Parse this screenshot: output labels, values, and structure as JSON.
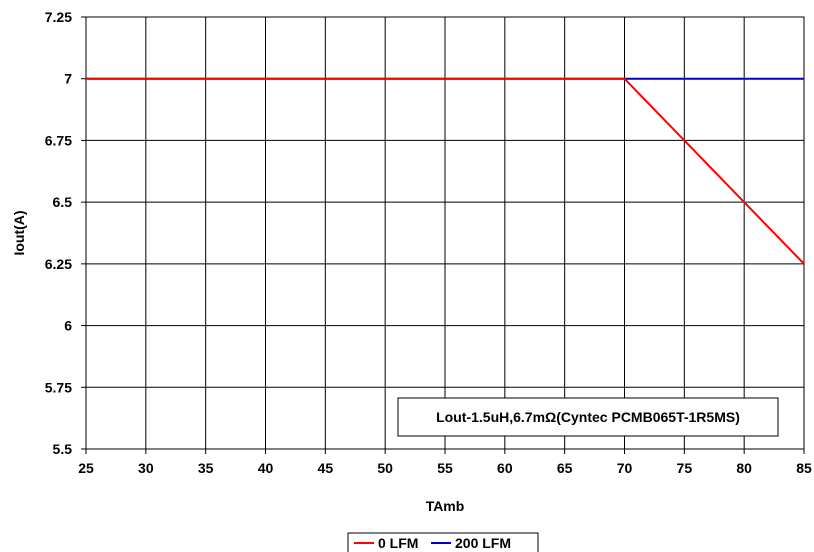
{
  "chart_data": {
    "type": "line",
    "xlabel": "TAmb",
    "ylabel": "Iout(A)",
    "xlim": [
      25,
      85
    ],
    "ylim": [
      5.5,
      7.25
    ],
    "x_ticks": [
      25,
      30,
      35,
      40,
      45,
      50,
      55,
      60,
      65,
      70,
      75,
      80,
      85
    ],
    "x_tick_labels": [
      "25",
      "30",
      "35",
      "40",
      "45",
      "50",
      "55",
      "60",
      "65",
      "70",
      "75",
      "80",
      "85"
    ],
    "y_ticks": [
      5.5,
      5.75,
      6,
      6.25,
      6.5,
      6.75,
      7,
      7.25
    ],
    "y_tick_labels": [
      "5.5",
      "5.75",
      "6",
      "6.25",
      "6.5",
      "6.75",
      "7",
      "7.25"
    ],
    "grid": true,
    "legend_position": "bottom-center",
    "annotation": "Lout-1.5uH,6.7mΩ(Cyntec PCMB065T-1R5MS)",
    "series": [
      {
        "name": "0 LFM",
        "color": "#ff0000",
        "x": [
          25,
          70,
          75,
          80,
          85
        ],
        "y": [
          7,
          7,
          6.75,
          6.5,
          6.25
        ]
      },
      {
        "name": "200 LFM",
        "color": "#0000c0",
        "x": [
          25,
          85
        ],
        "y": [
          7,
          7
        ]
      }
    ]
  }
}
